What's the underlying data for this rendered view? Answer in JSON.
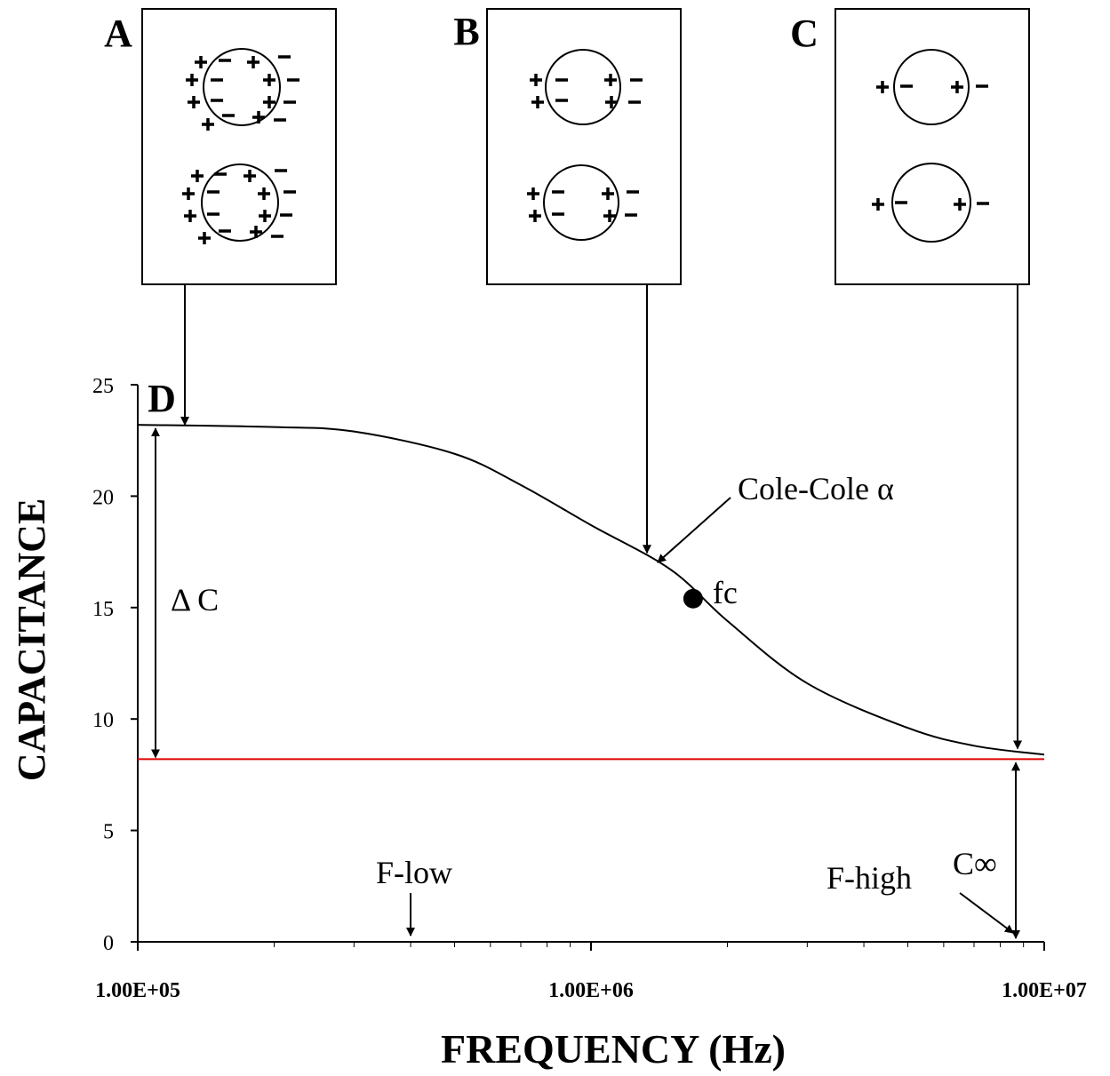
{
  "chart_data": {
    "type": "line",
    "xlabel": "FREQUENCY  (Hz)",
    "ylabel": "CAPACITANCE",
    "log_x": true,
    "xlim": [
      100000,
      10000000
    ],
    "xticks": [
      {
        "value": 100000,
        "label": "1.00E+05"
      },
      {
        "value": 1000000,
        "label": "1.00E+06"
      },
      {
        "value": 10000000,
        "label": "1.00E+07"
      }
    ],
    "ylim": [
      0,
      25
    ],
    "yticks": [
      0,
      5,
      10,
      15,
      20,
      25
    ],
    "x": [
      100000,
      200000,
      300000,
      500000,
      700000,
      1000000,
      1500000,
      2000000,
      3000000,
      5000000,
      7000000,
      10000000
    ],
    "series": [
      {
        "color": "#000000",
        "values": [
          23.2,
          23.1,
          22.9,
          21.9,
          20.5,
          18.7,
          16.7,
          14.4,
          11.6,
          9.6,
          8.8,
          8.4
        ]
      }
    ],
    "reference_line": {
      "y": 8.2,
      "color": "#e00000"
    },
    "fc_point": {
      "x": 1680000,
      "y": 15.4,
      "label": "fc"
    },
    "annotations": {
      "panel_a": "A",
      "panel_b": "B",
      "panel_c": "C",
      "panel_d": "D",
      "cole_cole": "Cole-Cole α",
      "delta_c": "Δ C",
      "f_low": "F-low",
      "f_high": "F-high",
      "c_inf": "C∞"
    }
  }
}
